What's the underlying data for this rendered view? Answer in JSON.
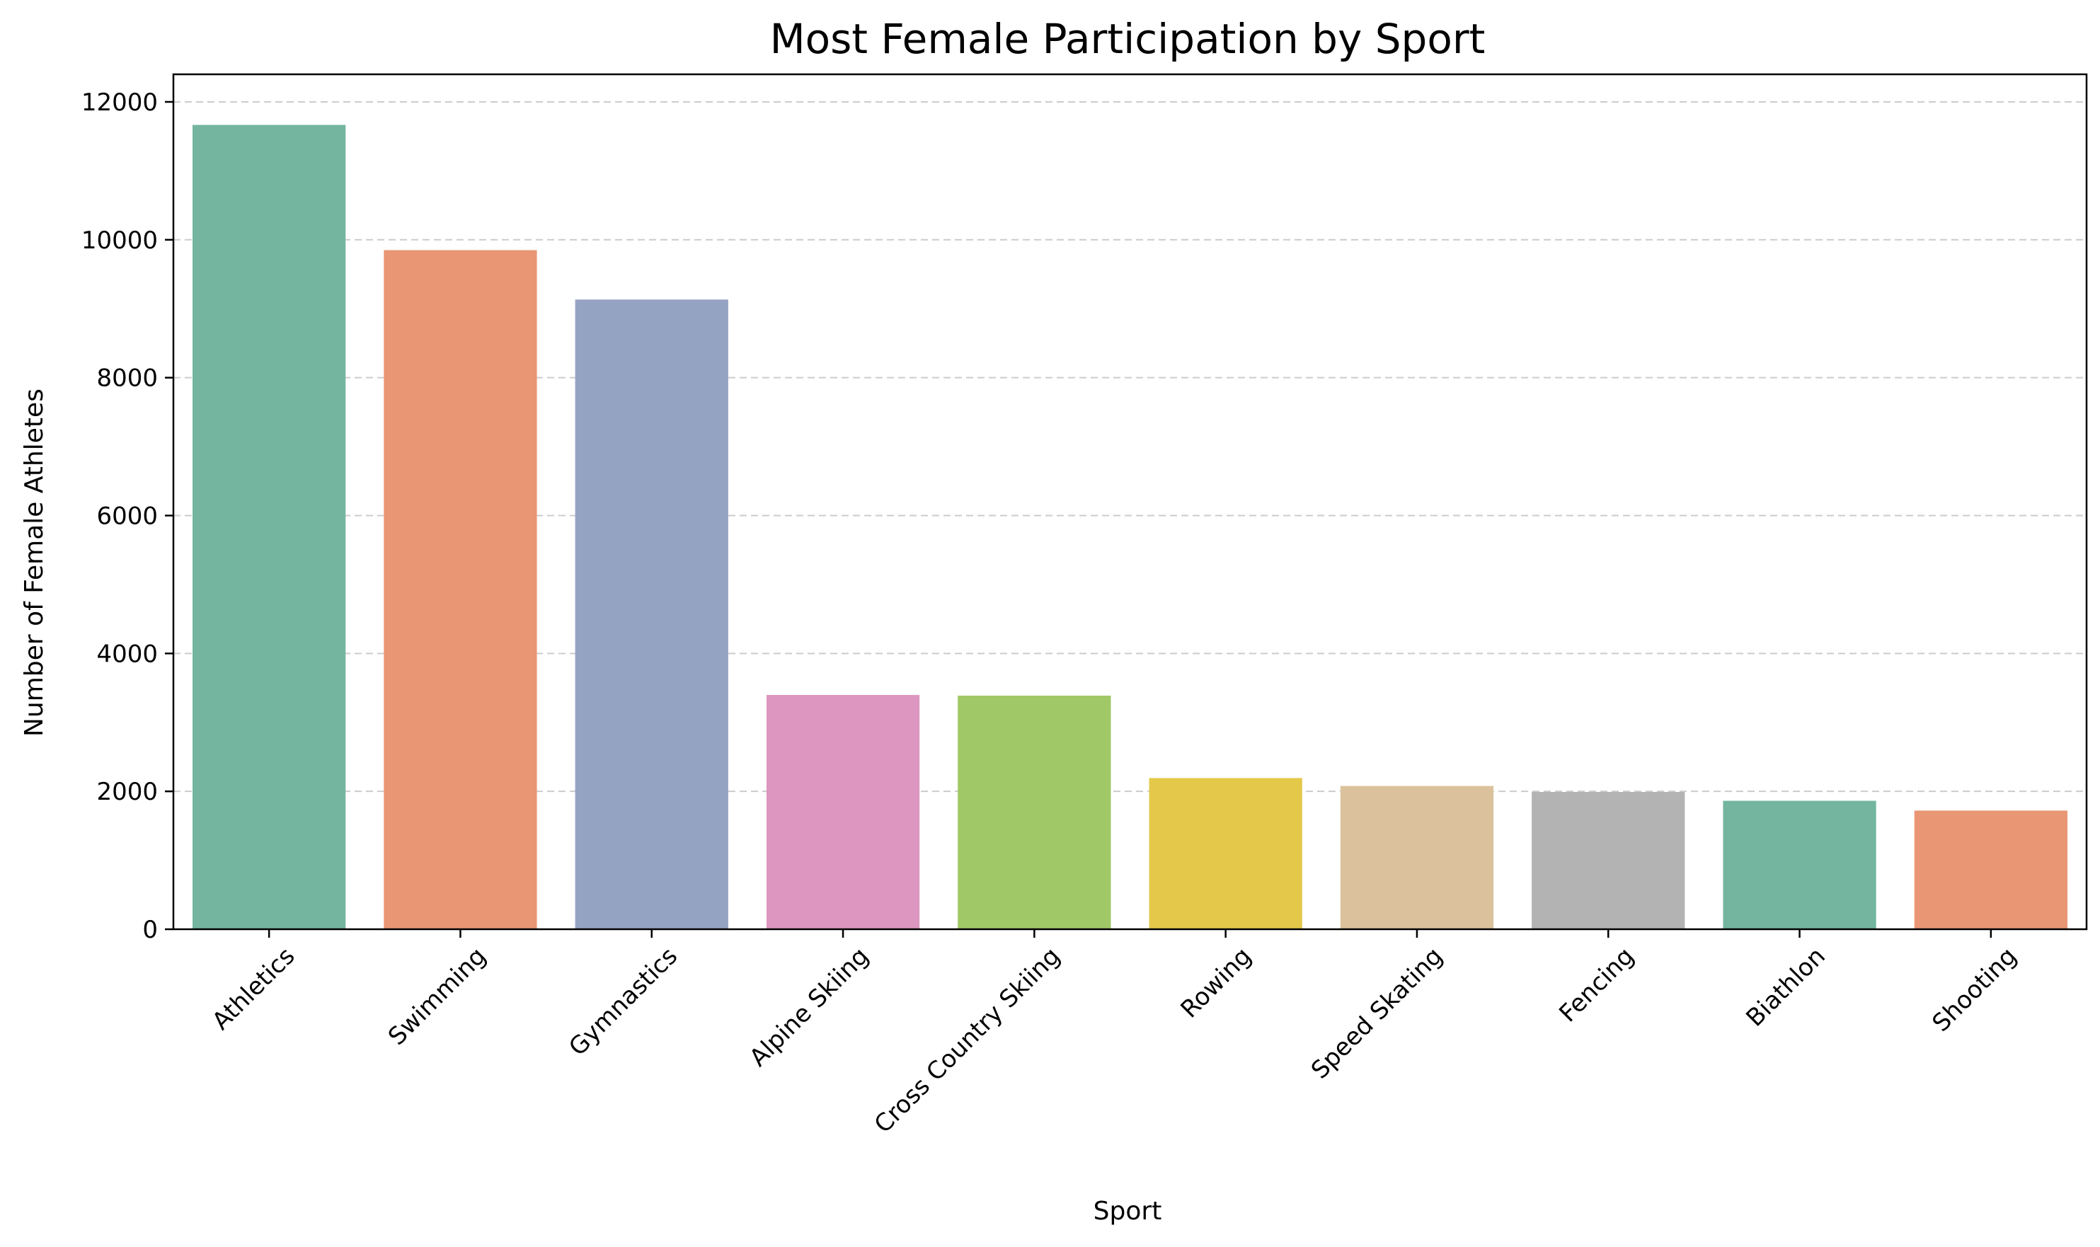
{
  "chart_data": {
    "type": "bar",
    "title": "Most Female Participation by Sport",
    "xlabel": "Sport",
    "ylabel": "Number of Female Athletes",
    "categories": [
      "Athletics",
      "Swimming",
      "Gymnastics",
      "Alpine Skiing",
      "Cross Country Skiing",
      "Rowing",
      "Speed Skating",
      "Fencing",
      "Biathlon",
      "Shooting"
    ],
    "values": [
      11666,
      9850,
      9133,
      3398,
      3388,
      2193,
      2078,
      1991,
      1863,
      1721
    ],
    "colors": [
      "#73b59f",
      "#e99674",
      "#95a3c3",
      "#dc96c0",
      "#a1c866",
      "#e4c84a",
      "#dbc29d",
      "#b3b3b3",
      "#73b59f",
      "#e99674"
    ],
    "ylim": [
      0,
      12400
    ],
    "yticks": [
      0,
      2000,
      4000,
      6000,
      8000,
      10000,
      12000
    ],
    "grid": "y-dashed",
    "legend": "none"
  }
}
